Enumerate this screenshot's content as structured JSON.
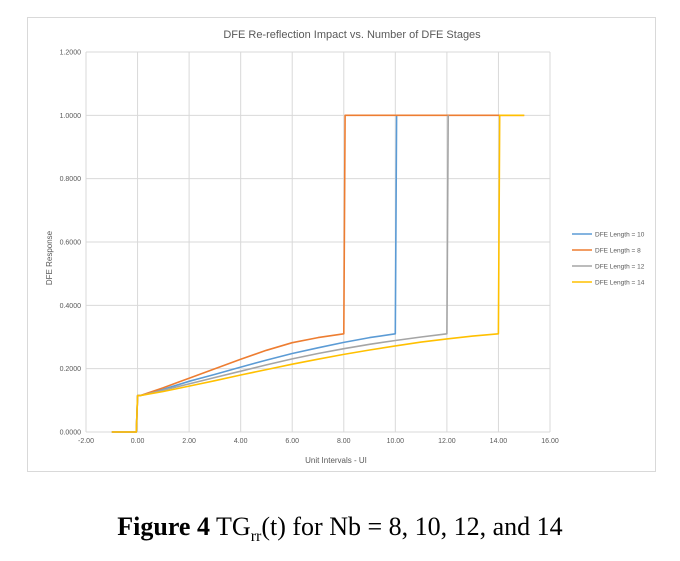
{
  "chart_data": {
    "type": "line",
    "title": "DFE Re-reflection  Impact vs. Number of DFE Stages",
    "xlabel": "Unit Intervals - UI",
    "ylabel": "DFE Response",
    "xlim": [
      -2,
      16
    ],
    "ylim": [
      0,
      1.2
    ],
    "xticks": [
      "-2.00",
      "0.00",
      "2.00",
      "4.00",
      "6.00",
      "8.00",
      "10.00",
      "12.00",
      "14.00",
      "16.00"
    ],
    "yticks": [
      "0.0000",
      "0.2000",
      "0.4000",
      "0.6000",
      "0.8000",
      "1.0000",
      "1.2000"
    ],
    "grid": "horizontal",
    "legend_position": "right",
    "series": [
      {
        "name": "DFE Length = 10",
        "color": "#5b9bd5",
        "x": [
          -1,
          -0.05,
          0,
          0.1,
          1,
          2,
          3,
          4,
          5,
          6,
          7,
          8,
          9,
          10,
          10.05,
          10.05
        ],
        "y": [
          0,
          0,
          0.115,
          0.115,
          0.135,
          0.16,
          0.182,
          0.205,
          0.227,
          0.248,
          0.266,
          0.283,
          0.298,
          0.31,
          1.0,
          1.0
        ]
      },
      {
        "name": "DFE Length = 8",
        "color": "#ed7d31",
        "x": [
          -1,
          -0.05,
          0,
          0.1,
          1,
          2,
          3,
          4,
          5,
          6,
          7,
          8,
          8.05,
          15
        ],
        "y": [
          0,
          0,
          0.115,
          0.115,
          0.14,
          0.17,
          0.2,
          0.23,
          0.258,
          0.282,
          0.298,
          0.31,
          1.0,
          1.0
        ]
      },
      {
        "name": "DFE Length = 12",
        "color": "#a5a5a5",
        "x": [
          -1,
          -0.05,
          0,
          0.1,
          1,
          2,
          3,
          4,
          5,
          6,
          7,
          8,
          9,
          10,
          11,
          12,
          12.05,
          12.05
        ],
        "y": [
          0,
          0,
          0.115,
          0.115,
          0.132,
          0.152,
          0.172,
          0.192,
          0.212,
          0.231,
          0.248,
          0.263,
          0.277,
          0.289,
          0.3,
          0.31,
          1.0,
          1.0
        ]
      },
      {
        "name": "DFE Length = 14",
        "color": "#ffc000",
        "x": [
          -1,
          -0.05,
          0,
          0.1,
          1,
          2,
          3,
          4,
          5,
          6,
          7,
          8,
          9,
          10,
          11,
          12,
          13,
          14,
          14.05,
          15
        ],
        "y": [
          0,
          0,
          0.115,
          0.115,
          0.128,
          0.145,
          0.162,
          0.18,
          0.197,
          0.214,
          0.23,
          0.245,
          0.259,
          0.272,
          0.284,
          0.294,
          0.303,
          0.31,
          1.0,
          1.0
        ]
      }
    ]
  },
  "caption": {
    "bold": "Figure 4",
    "tg": " TG",
    "sub": "rr",
    "rest": "(t) for Nb = 8, 10, 12, and 14"
  }
}
